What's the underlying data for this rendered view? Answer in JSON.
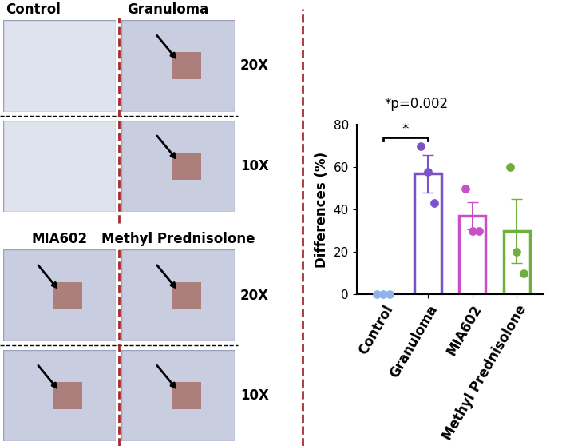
{
  "chart_data": {
    "type": "bar",
    "categories": [
      "Control",
      "Granuloma",
      "MIA602",
      "Methyl Prednisolone"
    ],
    "values": [
      0,
      57,
      37,
      30
    ],
    "error": [
      0,
      8.8,
      6.5,
      15
    ],
    "points": [
      [
        0,
        0,
        0
      ],
      [
        70,
        58,
        43
      ],
      [
        50,
        30,
        30
      ],
      [
        60,
        20,
        10
      ]
    ],
    "colors": [
      "#8fb3e6",
      "#7b52c7",
      "#c84fc8",
      "#6fae3f"
    ],
    "y_label": "Differences (%)",
    "ylim": [
      0,
      80
    ],
    "yticks": [
      0,
      20,
      40,
      60,
      80
    ],
    "annotations": [
      "*p=0.002"
    ],
    "significance": {
      "between": [
        "Control",
        "Granuloma"
      ],
      "label": "*"
    }
  },
  "image_panels": {
    "groups": [
      {
        "labels": [
          "Control",
          "Granuloma"
        ],
        "magnifications": [
          "20X",
          "10X"
        ]
      },
      {
        "labels": [
          "MIA602",
          "Methyl Prednisolone"
        ],
        "magnifications": [
          "20X",
          "10X"
        ]
      }
    ]
  }
}
